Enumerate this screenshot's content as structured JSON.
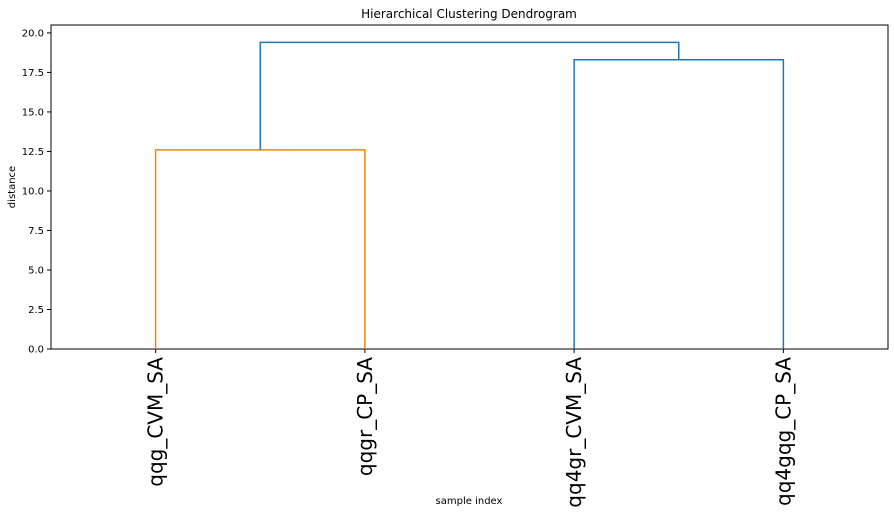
{
  "chart_data": {
    "type": "dendrogram",
    "title": "Hierarchical Clustering Dendrogram",
    "xlabel": "sample index",
    "ylabel": "distance",
    "ylim": [
      0,
      20.5
    ],
    "yticks": [
      "0.0",
      "2.5",
      "5.0",
      "7.5",
      "10.0",
      "12.5",
      "15.0",
      "17.5",
      "20.0"
    ],
    "ytick_values": [
      0,
      2.5,
      5.0,
      7.5,
      10.0,
      12.5,
      15.0,
      17.5,
      20.0
    ],
    "leaves": [
      "qqg_CVM_SA",
      "qqgr_CP_SA",
      "qq4gr_CVM_SA",
      "qq4gqg_CP_SA"
    ],
    "links": [
      {
        "left": "qqg_CVM_SA",
        "right": "qqgr_CP_SA",
        "distance": 12.6,
        "color": "#ff7f0e"
      },
      {
        "left": "qq4gr_CVM_SA",
        "right": "qq4gqg_CP_SA",
        "distance": 18.3,
        "color": "#1f77b4"
      },
      {
        "left": "cluster_1",
        "right": "cluster_2",
        "distance": 19.4,
        "color": "#1f77b4"
      }
    ],
    "grid": false,
    "colors": {
      "cluster_a": "#ff7f0e",
      "above_threshold": "#1f77b4"
    }
  }
}
